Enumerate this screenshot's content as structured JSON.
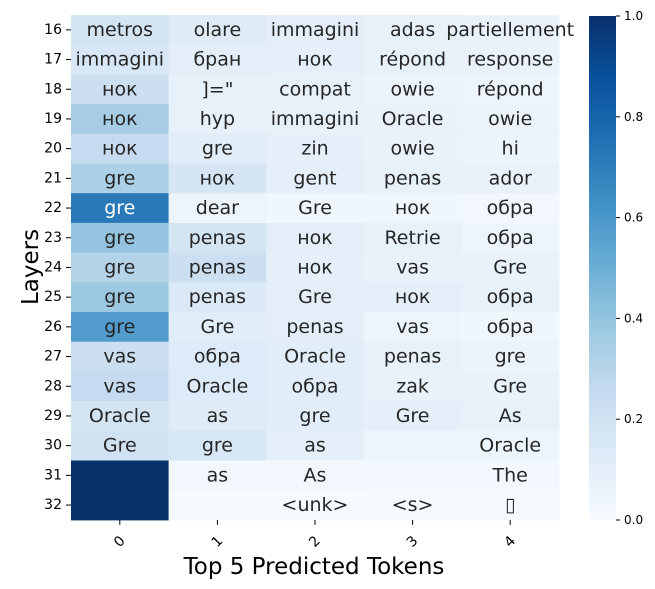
{
  "chart_data": {
    "type": "heatmap",
    "title": "",
    "xlabel": "Top 5 Predicted Tokens",
    "ylabel": "Layers",
    "x_ticks": [
      "0",
      "1",
      "2",
      "3",
      "4"
    ],
    "y_ticks": [
      "16",
      "17",
      "18",
      "19",
      "20",
      "21",
      "22",
      "23",
      "24",
      "25",
      "26",
      "27",
      "28",
      "29",
      "30",
      "31",
      "32"
    ],
    "colormap": "Blues",
    "vmin": 0.0,
    "vmax": 1.0,
    "colorbar_ticks": [
      "0.0",
      "0.2",
      "0.4",
      "0.6",
      "0.8",
      "1.0"
    ],
    "tokens": [
      [
        "metros",
        "olare",
        "immagini",
        "adas",
        "partiellement"
      ],
      [
        "immagini",
        "бран",
        "нок",
        "répond",
        "response"
      ],
      [
        "нок",
        "]=\"",
        "compat",
        "owie",
        "répond"
      ],
      [
        "нок",
        "hyp",
        "immagini",
        "Oracle",
        "owie"
      ],
      [
        "нок",
        "gre",
        "zin",
        "owie",
        "hi"
      ],
      [
        "gre",
        "нок",
        "gent",
        "penas",
        "ador"
      ],
      [
        "gre",
        "dear",
        "Gre",
        "нок",
        "обра"
      ],
      [
        "gre",
        "penas",
        "нок",
        "Retrie",
        "обра"
      ],
      [
        "gre",
        "penas",
        "нок",
        "vas",
        "Gre"
      ],
      [
        "gre",
        "penas",
        "Gre",
        "нок",
        "обра"
      ],
      [
        "gre",
        "Gre",
        "penas",
        "vas",
        "обра"
      ],
      [
        "vas",
        "обра",
        "Oracle",
        "penas",
        "gre"
      ],
      [
        "vas",
        "Oracle",
        "обра",
        "zak",
        "Gre"
      ],
      [
        "Oracle",
        "as",
        "gre",
        "Gre",
        "As"
      ],
      [
        "Gre",
        "gre",
        "as",
        "",
        "Oracle"
      ],
      [
        "",
        "as",
        "As",
        "",
        "The"
      ],
      [
        "",
        "",
        "<unk>",
        "<s>",
        "▯"
      ]
    ],
    "values": [
      [
        0.18,
        0.12,
        0.1,
        0.08,
        0.07
      ],
      [
        0.16,
        0.1,
        0.09,
        0.08,
        0.07
      ],
      [
        0.22,
        0.08,
        0.08,
        0.06,
        0.05
      ],
      [
        0.35,
        0.08,
        0.08,
        0.07,
        0.06
      ],
      [
        0.25,
        0.11,
        0.09,
        0.07,
        0.06
      ],
      [
        0.33,
        0.17,
        0.09,
        0.08,
        0.07
      ],
      [
        0.72,
        0.05,
        0.04,
        0.04,
        0.03
      ],
      [
        0.4,
        0.18,
        0.1,
        0.08,
        0.05
      ],
      [
        0.3,
        0.22,
        0.09,
        0.07,
        0.07
      ],
      [
        0.38,
        0.14,
        0.1,
        0.09,
        0.08
      ],
      [
        0.58,
        0.11,
        0.1,
        0.05,
        0.04
      ],
      [
        0.22,
        0.13,
        0.11,
        0.08,
        0.06
      ],
      [
        0.25,
        0.13,
        0.11,
        0.07,
        0.07
      ],
      [
        0.18,
        0.12,
        0.11,
        0.09,
        0.08
      ],
      [
        0.2,
        0.16,
        0.09,
        0.05,
        0.05
      ],
      [
        1.0,
        0.03,
        0.03,
        0.02,
        0.02
      ],
      [
        1.0,
        0.01,
        0.01,
        0.01,
        0.01
      ]
    ]
  }
}
